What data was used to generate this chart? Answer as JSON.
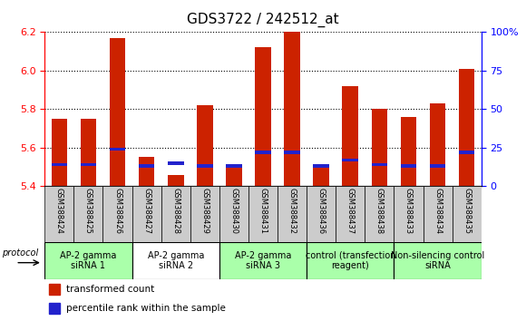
{
  "title": "GDS3722 / 242512_at",
  "samples": [
    "GSM388424",
    "GSM388425",
    "GSM388426",
    "GSM388427",
    "GSM388428",
    "GSM388429",
    "GSM388430",
    "GSM388431",
    "GSM388432",
    "GSM388436",
    "GSM388437",
    "GSM388438",
    "GSM388433",
    "GSM388434",
    "GSM388435"
  ],
  "transformed_count": [
    5.75,
    5.75,
    6.17,
    5.55,
    5.46,
    5.82,
    5.5,
    6.12,
    6.2,
    5.5,
    5.92,
    5.8,
    5.76,
    5.83,
    6.01
  ],
  "percentile_rank": [
    14,
    14,
    24,
    13,
    15,
    13,
    13,
    22,
    22,
    13,
    17,
    14,
    13,
    13,
    22
  ],
  "ylim": [
    5.4,
    6.2
  ],
  "yticks": [
    5.4,
    5.6,
    5.8,
    6.0,
    6.2
  ],
  "right_yticks": [
    0,
    25,
    50,
    75,
    100
  ],
  "bar_color": "#cc2200",
  "blue_color": "#2222cc",
  "groups": [
    {
      "label": "AP-2 gamma\nsiRNA 1",
      "start": 0,
      "end": 3,
      "color": "#aaffaa"
    },
    {
      "label": "AP-2 gamma\nsiRNA 2",
      "start": 3,
      "end": 6,
      "color": "#ffffff"
    },
    {
      "label": "AP-2 gamma\nsiRNA 3",
      "start": 6,
      "end": 9,
      "color": "#aaffaa"
    },
    {
      "label": "control (transfection\nreagent)",
      "start": 9,
      "end": 12,
      "color": "#aaffaa"
    },
    {
      "label": "Non-silencing control\nsiRNA",
      "start": 12,
      "end": 15,
      "color": "#aaffaa"
    }
  ],
  "protocol_label": "protocol",
  "legend_red": "transformed count",
  "legend_blue": "percentile rank within the sample",
  "sample_box_color": "#cccccc",
  "title_fontsize": 11,
  "tick_fontsize": 8,
  "sample_fontsize": 6,
  "group_fontsize": 7,
  "legend_fontsize": 7.5
}
